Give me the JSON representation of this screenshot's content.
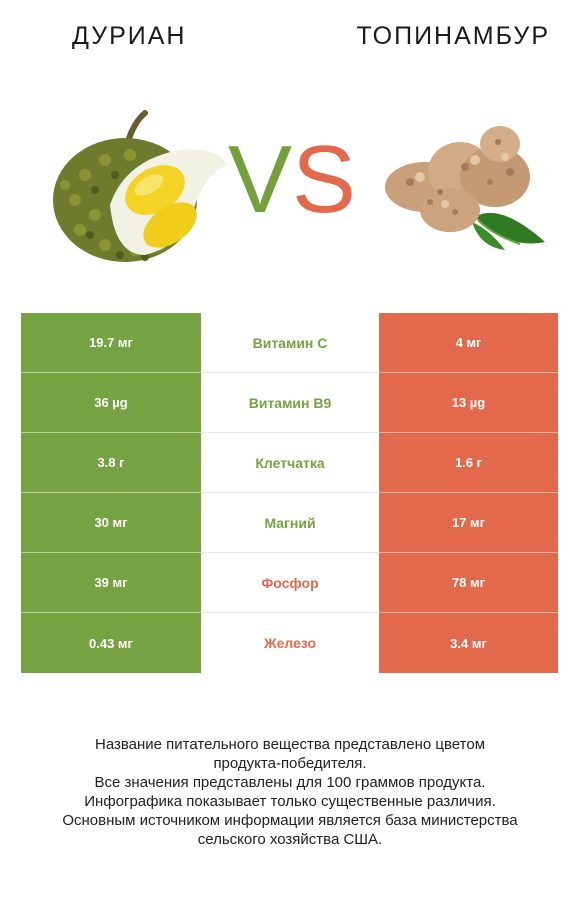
{
  "left_title": "ДУРИАН",
  "right_title": "ТОПИНАМБУР",
  "vs": {
    "v": "V",
    "s": "S"
  },
  "colors": {
    "green": "#76a342",
    "red": "#e2694b"
  },
  "rows": [
    {
      "left": "19.7 мг",
      "nutrient": "Витамин C",
      "right": "4 мг",
      "winner": "green"
    },
    {
      "left": "36 µg",
      "nutrient": "Витамин B9",
      "right": "13 µg",
      "winner": "green"
    },
    {
      "left": "3.8 г",
      "nutrient": "Клетчатка",
      "right": "1.6 г",
      "winner": "green"
    },
    {
      "left": "30 мг",
      "nutrient": "Магний",
      "right": "17 мг",
      "winner": "green"
    },
    {
      "left": "39 мг",
      "nutrient": "Фосфор",
      "right": "78 мг",
      "winner": "red"
    },
    {
      "left": "0.43 мг",
      "nutrient": "Железо",
      "right": "3.4 мг",
      "winner": "red"
    }
  ],
  "footer": [
    "Название питательного вещества представлено цветом",
    "продукта-победителя.",
    "Все значения представлены для 100 граммов продукта.",
    "Инфографика показывает только существенные различия.",
    "Основным источником информации является база министерства",
    "сельского хозяйства США."
  ]
}
